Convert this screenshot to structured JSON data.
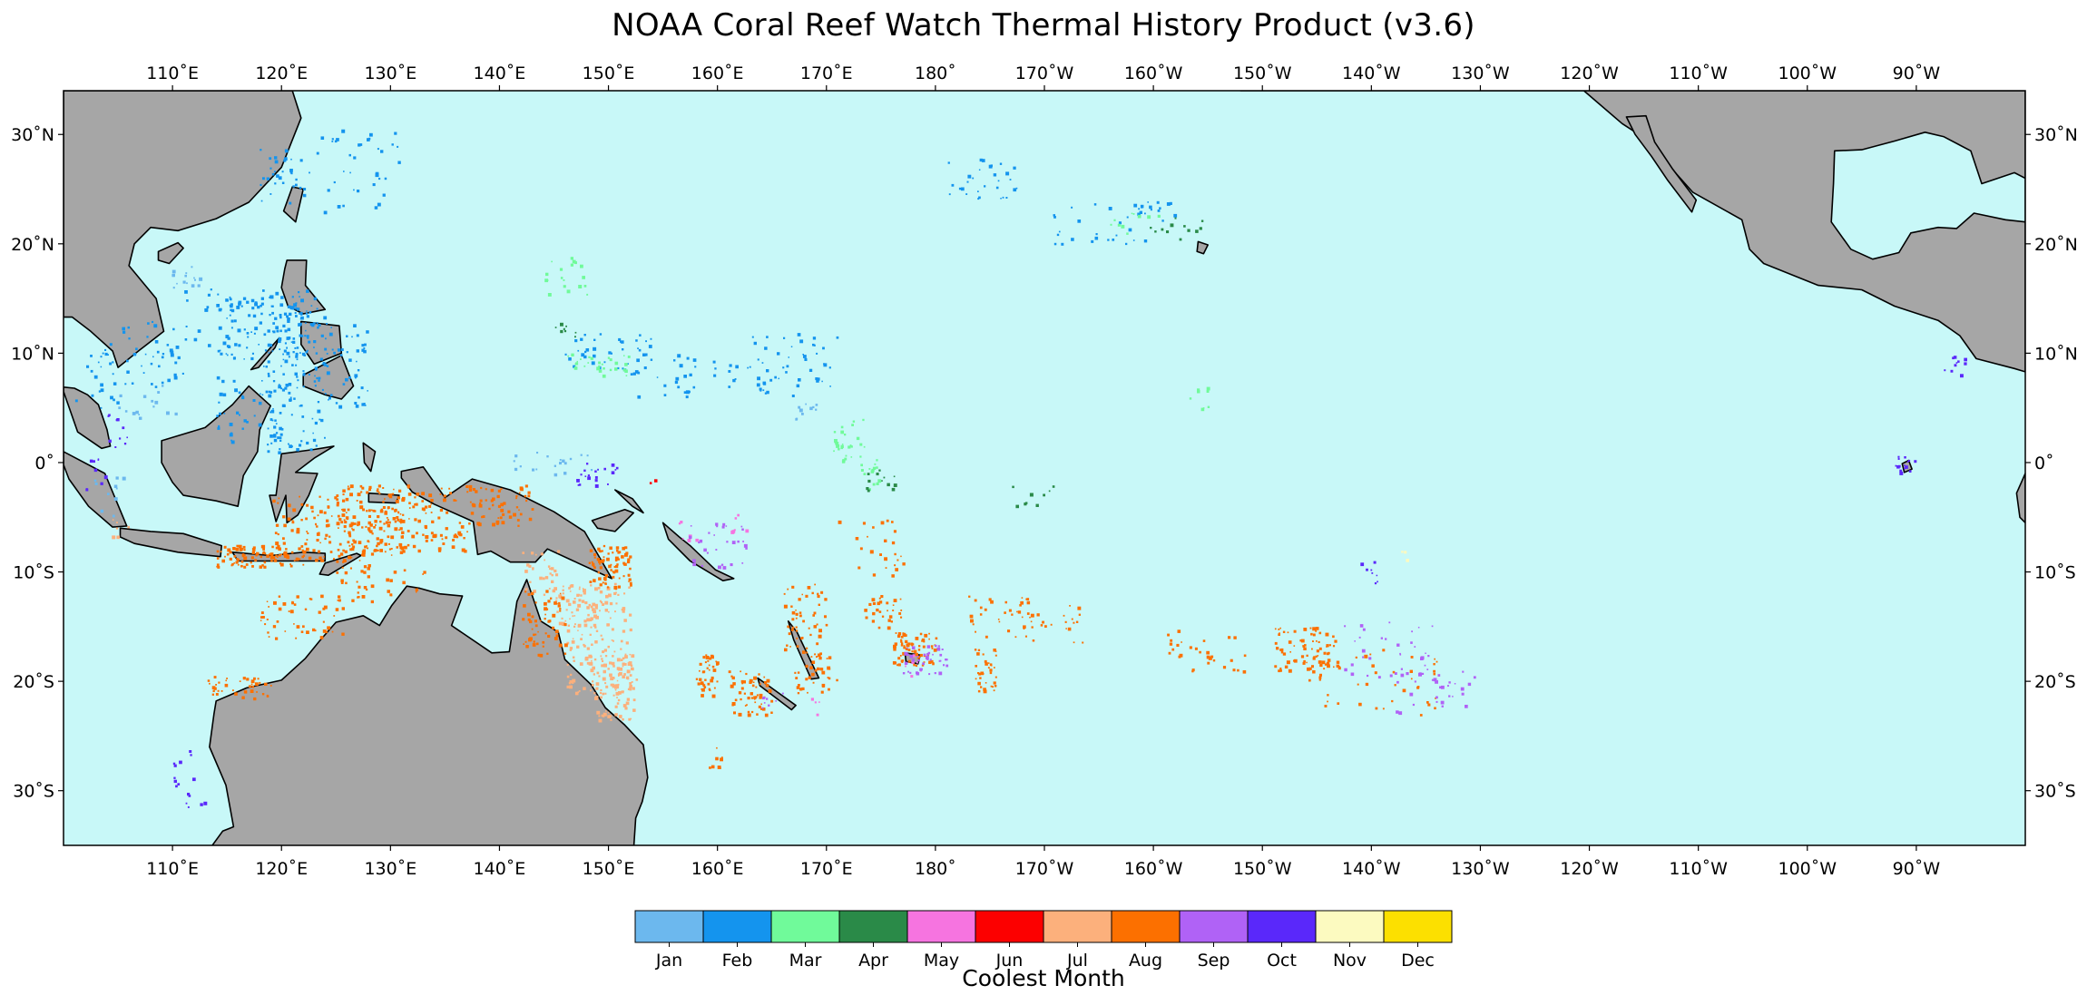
{
  "title": "NOAA Coral Reef Watch Thermal History Product (v3.6)",
  "map": {
    "lon_range": [
      100,
      280
    ],
    "lat_range": [
      -35,
      34
    ],
    "ocean_color": "#c8f8f8",
    "land_color": "#a6a6a6",
    "coast_color": "#000000"
  },
  "axes": {
    "lon_ticks": [
      {
        "value": 110,
        "label": "110˚E"
      },
      {
        "value": 120,
        "label": "120˚E"
      },
      {
        "value": 130,
        "label": "130˚E"
      },
      {
        "value": 140,
        "label": "140˚E"
      },
      {
        "value": 150,
        "label": "150˚E"
      },
      {
        "value": 160,
        "label": "160˚E"
      },
      {
        "value": 170,
        "label": "170˚E"
      },
      {
        "value": 180,
        "label": "180˚"
      },
      {
        "value": 190,
        "label": "170˚W"
      },
      {
        "value": 200,
        "label": "160˚W"
      },
      {
        "value": 210,
        "label": "150˚W"
      },
      {
        "value": 220,
        "label": "140˚W"
      },
      {
        "value": 230,
        "label": "130˚W"
      },
      {
        "value": 240,
        "label": "120˚W"
      },
      {
        "value": 250,
        "label": "110˚W"
      },
      {
        "value": 260,
        "label": "100˚W"
      },
      {
        "value": 270,
        "label": "90˚W"
      }
    ],
    "lat_ticks": [
      {
        "value": 30,
        "label": "30˚N"
      },
      {
        "value": 20,
        "label": "20˚N"
      },
      {
        "value": 10,
        "label": "10˚N"
      },
      {
        "value": 0,
        "label": "0˚"
      },
      {
        "value": -10,
        "label": "10˚S"
      },
      {
        "value": -20,
        "label": "20˚S"
      },
      {
        "value": -30,
        "label": "30˚S"
      }
    ]
  },
  "legend": {
    "title": "Coolest Month",
    "items": [
      {
        "label": "Jan",
        "color": "#6cb8ee"
      },
      {
        "label": "Feb",
        "color": "#1494ee"
      },
      {
        "label": "Mar",
        "color": "#70fa9a"
      },
      {
        "label": "Apr",
        "color": "#2a8a48"
      },
      {
        "label": "May",
        "color": "#f674e0"
      },
      {
        "label": "Jun",
        "color": "#fc0000"
      },
      {
        "label": "Jul",
        "color": "#fcb07c"
      },
      {
        "label": "Aug",
        "color": "#fc7000"
      },
      {
        "label": "Sep",
        "color": "#b062f6"
      },
      {
        "label": "Oct",
        "color": "#5a28fa"
      },
      {
        "label": "Nov",
        "color": "#fcfac0"
      },
      {
        "label": "Dec",
        "color": "#fce000"
      }
    ]
  }
}
